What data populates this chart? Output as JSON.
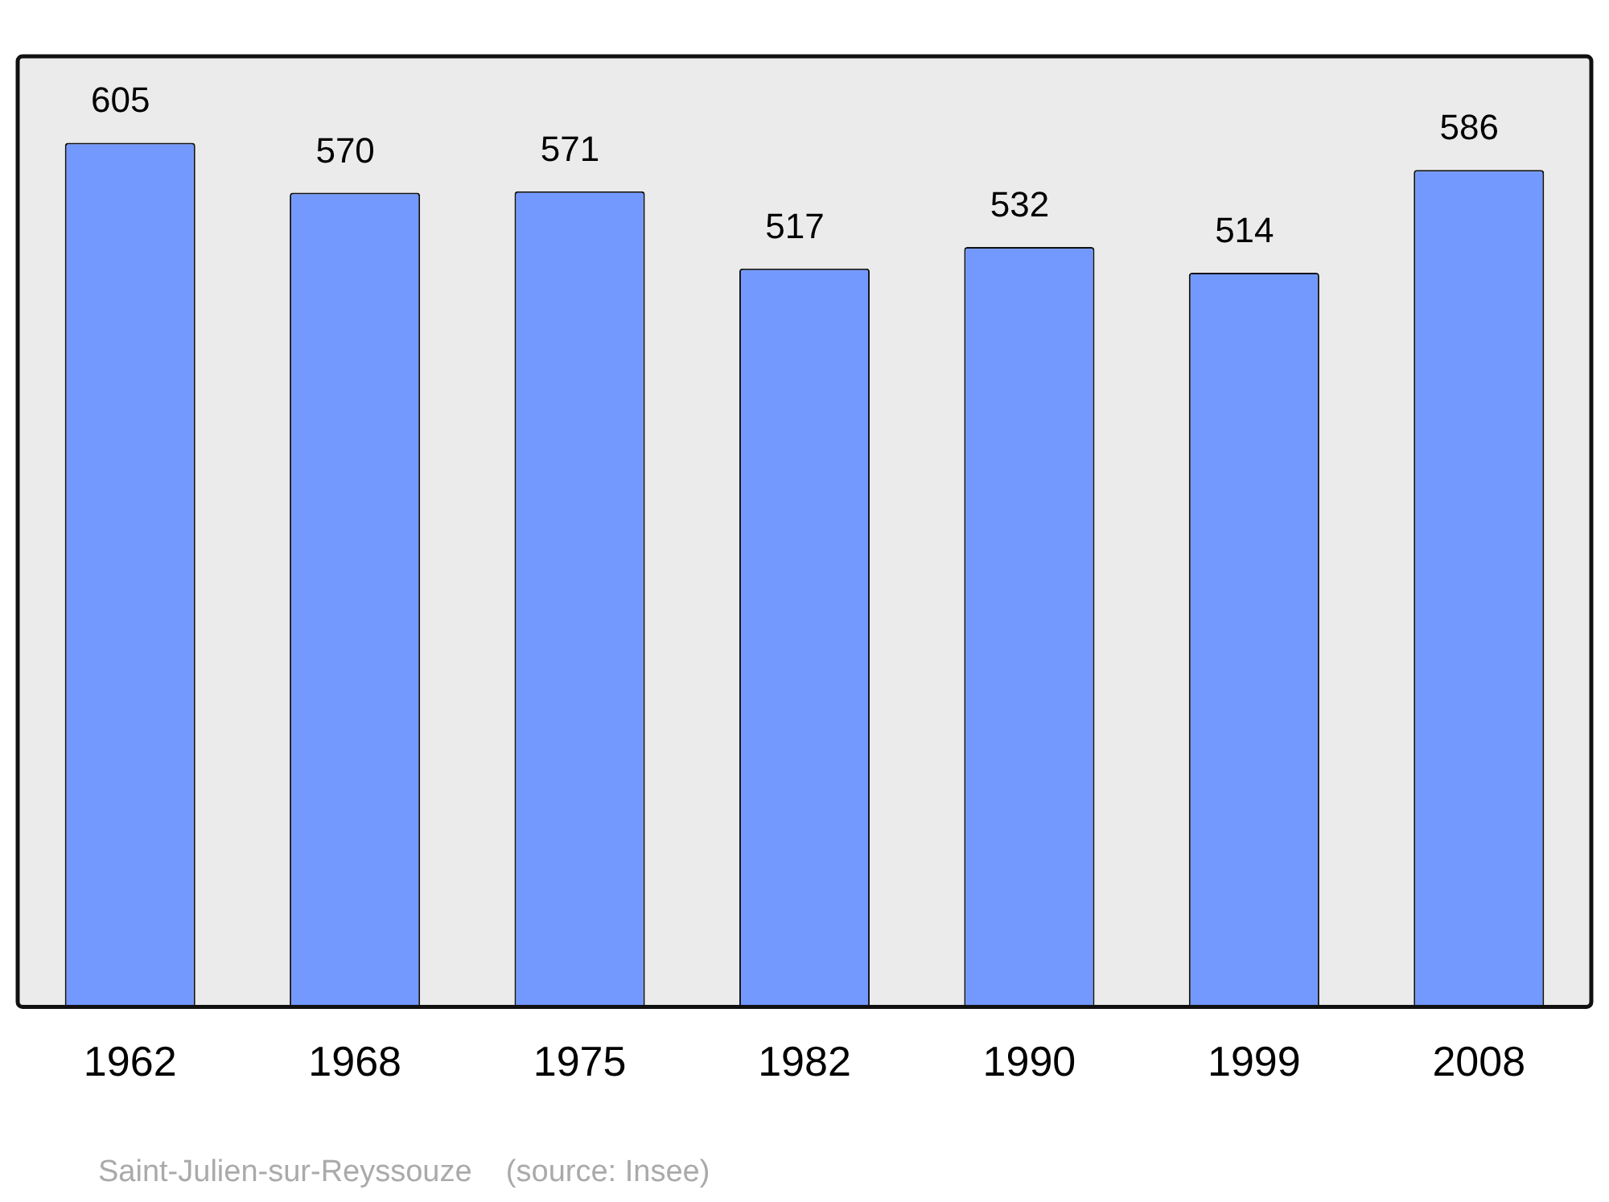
{
  "chart_data": {
    "type": "bar",
    "categories": [
      "1962",
      "1968",
      "1975",
      "1982",
      "1990",
      "1999",
      "2008"
    ],
    "values": [
      605,
      570,
      571,
      517,
      532,
      514,
      586
    ],
    "color": "#7399ff",
    "data_labels": true,
    "grid": false,
    "legend": false,
    "annotations": [
      "Saint-Julien-sur-Reyssouze    (source: Insee)"
    ]
  }
}
